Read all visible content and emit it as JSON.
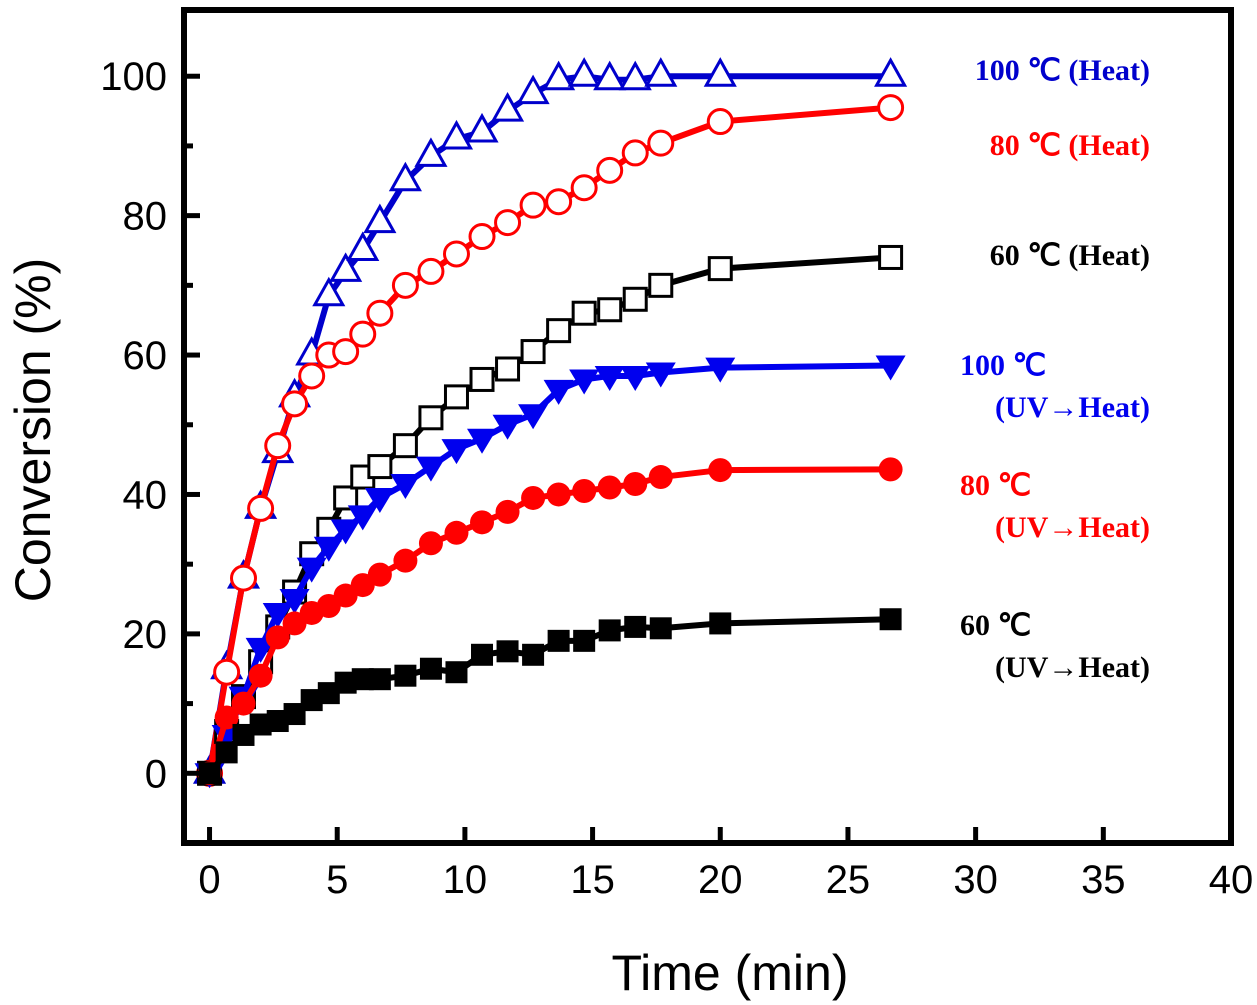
{
  "chart_data": {
    "type": "scatter",
    "title": "",
    "xlabel": "Time (min)",
    "ylabel": "Conversion (%)",
    "xlim": [
      -1,
      40
    ],
    "ylim": [
      -10,
      109.5
    ],
    "xticks": [
      0,
      5,
      10,
      15,
      20,
      25,
      30,
      35,
      40
    ],
    "yticks": [
      0,
      20,
      40,
      60,
      80,
      100
    ],
    "y_minor_step": 10,
    "grid": false,
    "legend_placement": "right (labels beside series ends)",
    "x": [
      0,
      0.67,
      1.33,
      2,
      2.67,
      3.33,
      4,
      4.67,
      5.33,
      6,
      6.67,
      7.67,
      8.67,
      9.67,
      10.67,
      11.67,
      12.67,
      13.67,
      14.67,
      15.67,
      16.67,
      17.67,
      20,
      26.67
    ],
    "series": [
      {
        "name": "100 ℃ (Heat)",
        "label_lines": [
          "100 ℃ (Heat)"
        ],
        "color": "#0000cc",
        "marker": "triangle-up",
        "filled": false,
        "values": [
          0,
          15,
          28,
          38,
          46,
          54,
          60,
          68.5,
          72,
          75,
          79,
          85,
          88.5,
          91,
          92,
          95,
          97.5,
          99.5,
          100,
          99.5,
          99.5,
          100,
          100,
          100
        ]
      },
      {
        "name": "80 ℃ (Heat)",
        "label_lines": [
          "80 ℃ (Heat)"
        ],
        "color": "#ff0000",
        "marker": "circle",
        "filled": false,
        "values": [
          0,
          14.5,
          28,
          38,
          47,
          53,
          57,
          60,
          60.5,
          63,
          66,
          70,
          72,
          74.5,
          77,
          79,
          81.5,
          82,
          84,
          86.5,
          89,
          90.4,
          93.5,
          95.5
        ]
      },
      {
        "name": "60 ℃ (Heat)",
        "label_lines": [
          "60 ℃ (Heat)"
        ],
        "color": "#000000",
        "marker": "square",
        "filled": false,
        "values": [
          0,
          6,
          11,
          16,
          21,
          26,
          31.5,
          35,
          39.5,
          42.5,
          44,
          47,
          51,
          54,
          56.5,
          58,
          60.5,
          63.5,
          66,
          66.5,
          68,
          70,
          72.4,
          74
        ]
      },
      {
        "name": "100 ℃ (UV→Heat)",
        "label_lines": [
          "100 ℃",
          "(UV→Heat)"
        ],
        "color": "#0000ee",
        "marker": "triangle-down",
        "filled": true,
        "values": [
          0,
          5.5,
          11,
          18,
          23,
          25,
          29.5,
          32.5,
          35,
          37,
          39.5,
          41.5,
          44,
          46.5,
          48,
          50,
          51.5,
          55,
          56.5,
          57,
          57,
          57.5,
          58.2,
          58.5
        ]
      },
      {
        "name": "80 ℃ (UV→Heat)",
        "label_lines": [
          "80 ℃",
          "(UV→Heat)"
        ],
        "color": "#ff0000",
        "marker": "circle",
        "filled": true,
        "values": [
          0,
          8,
          10,
          14,
          19.5,
          21.5,
          23,
          24,
          25.5,
          27,
          28.5,
          30.5,
          33,
          34.5,
          36,
          37.5,
          39.5,
          40,
          40.5,
          41,
          41.5,
          42.5,
          43.5,
          43.6
        ]
      },
      {
        "name": "60 ℃ (UV→Heat)",
        "label_lines": [
          "60 ℃",
          "(UV→Heat)"
        ],
        "color": "#000000",
        "marker": "square",
        "filled": true,
        "values": [
          0,
          3,
          5.5,
          7,
          7.5,
          8.5,
          10.5,
          11.5,
          13,
          13.5,
          13.5,
          14,
          15,
          14.5,
          17,
          17.5,
          17,
          19,
          19,
          20.5,
          21,
          20.8,
          21.5,
          22.1
        ]
      }
    ],
    "legend_label_anchor_values": [
      100,
      93.5,
      74,
      58.5,
      43.6,
      22.1
    ]
  }
}
